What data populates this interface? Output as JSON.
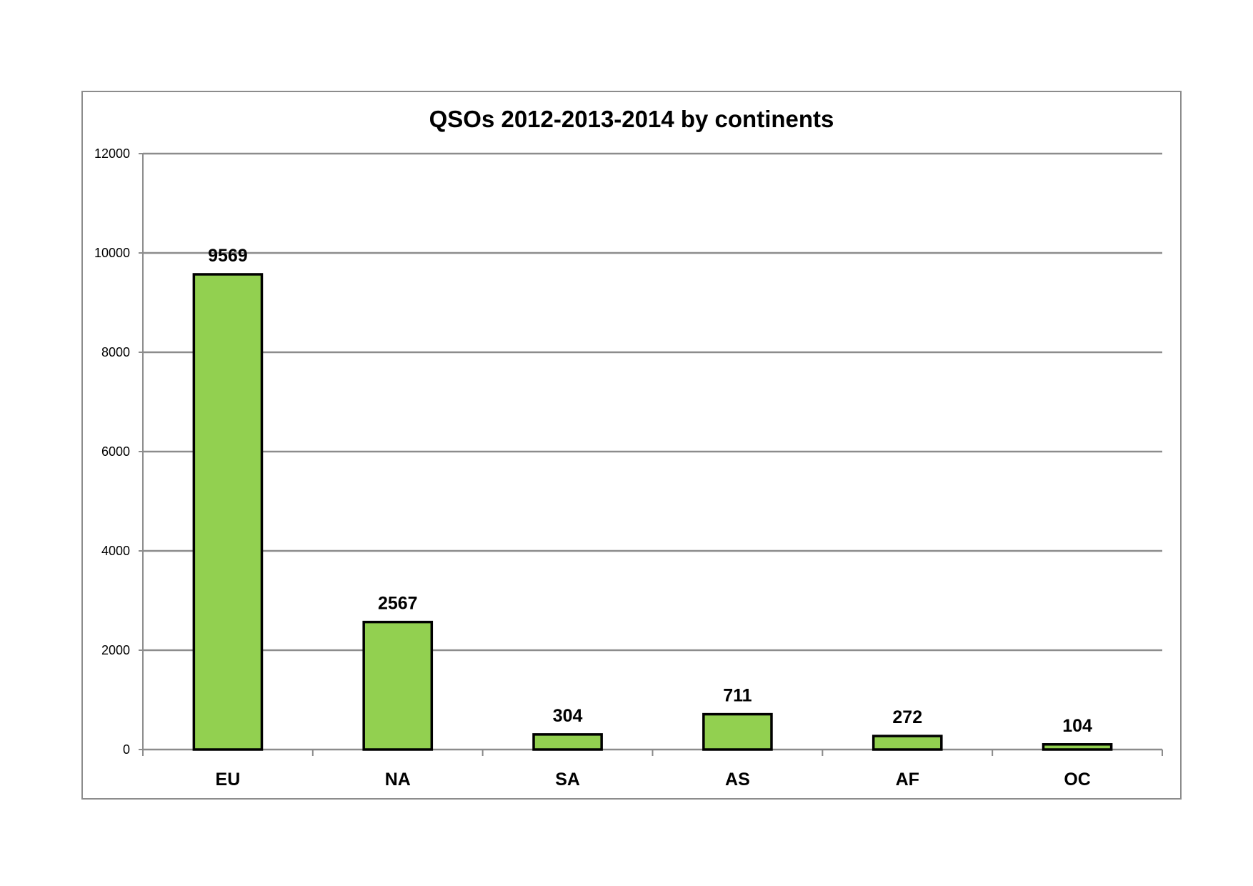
{
  "chart_data": {
    "type": "bar",
    "title": "QSOs 2012-2013-2014 by continents",
    "xlabel": "",
    "ylabel": "",
    "categories": [
      "EU",
      "NA",
      "SA",
      "AS",
      "AF",
      "OC"
    ],
    "values": [
      9569,
      2567,
      304,
      711,
      272,
      104
    ],
    "data_labels": [
      "9569",
      "2567",
      "304",
      "711",
      "272",
      "104"
    ],
    "ylim": [
      0,
      12000
    ],
    "yticks": [
      0,
      2000,
      4000,
      6000,
      8000,
      10000,
      12000
    ],
    "ytick_labels": [
      "0",
      "2000",
      "4000",
      "6000",
      "8000",
      "10000",
      "12000"
    ],
    "grid": true,
    "legend": "none",
    "colors": {
      "bar_fill": "#92d050",
      "bar_stroke": "#000000",
      "grid": "#8c8c8c",
      "axis": "#8c8c8c"
    }
  }
}
